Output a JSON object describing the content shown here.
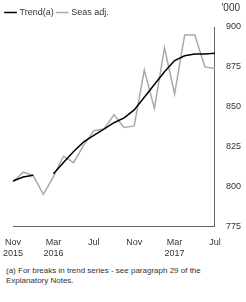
{
  "chart_data": {
    "type": "line",
    "categories": [
      "Nov 2015",
      null,
      null,
      null,
      "Mar 2016",
      null,
      null,
      null,
      "Jul",
      null,
      null,
      null,
      "Nov",
      null,
      null,
      null,
      "Mar 2017",
      null,
      null,
      null,
      "Jul"
    ],
    "series": [
      {
        "name": "Trend(a)",
        "color": "#000000",
        "values": [
          803.5,
          806,
          807,
          null,
          808,
          815,
          822,
          828,
          832,
          836,
          840,
          843,
          848,
          856,
          864,
          872,
          879,
          882,
          883,
          883,
          883.5
        ]
      },
      {
        "name": "Seas adj.",
        "color": "#aaaaaa",
        "values": [
          803,
          809,
          807,
          795,
          806,
          819,
          815,
          826,
          835,
          836,
          845,
          837,
          838,
          873,
          849,
          887,
          858,
          895,
          895,
          875,
          874
        ]
      }
    ],
    "ylim": [
      775,
      900
    ],
    "yticks": [
      775,
      800,
      825,
      850,
      875,
      900
    ],
    "y_label": "'000",
    "grid": false,
    "legend": "top left",
    "footnote": "(a) For breaks in trend series - see paragraph 29 of the Explanatory Notes."
  }
}
